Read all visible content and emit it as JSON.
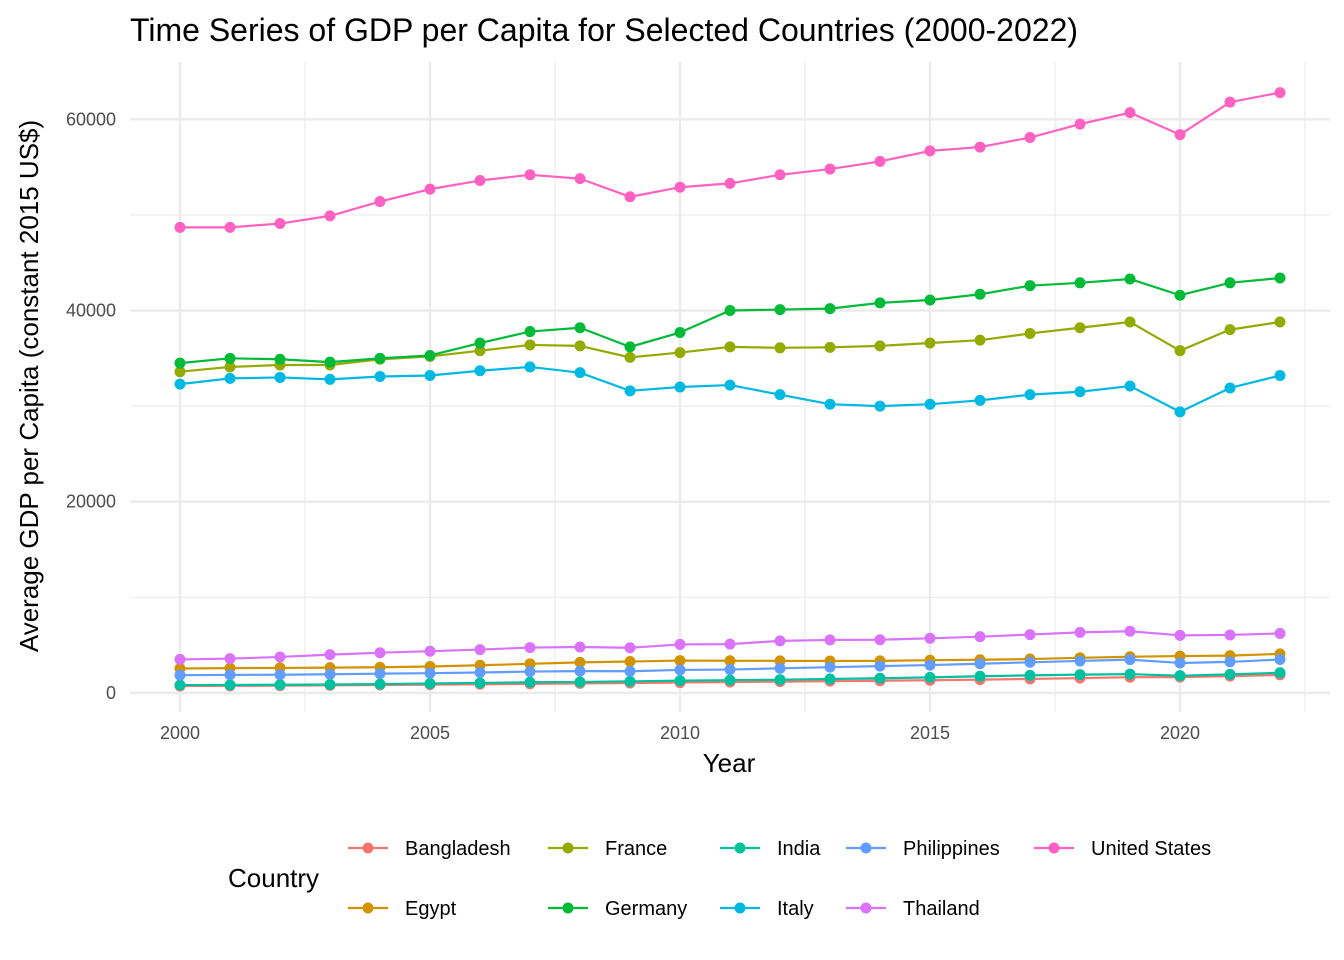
{
  "chart_data": {
    "type": "line",
    "title": "Time Series of GDP per Capita for Selected Countries (2000-2022)",
    "xlabel": "Year",
    "ylabel": "Average GDP per Capita (constant 2015 US$)",
    "xlim": [
      1999,
      2023
    ],
    "ylim": [
      -2000,
      66000
    ],
    "x_ticks": [
      2000,
      2005,
      2010,
      2015,
      2020
    ],
    "y_ticks": [
      0,
      20000,
      40000,
      60000
    ],
    "grid": true,
    "legend_title": "Country",
    "legend_position": "bottom",
    "x": [
      2000,
      2001,
      2002,
      2003,
      2004,
      2005,
      2006,
      2007,
      2008,
      2009,
      2010,
      2011,
      2012,
      2013,
      2014,
      2015,
      2016,
      2017,
      2018,
      2019,
      2020,
      2021,
      2022
    ],
    "series": [
      {
        "name": "Bangladesh",
        "color": "#F8766D",
        "values": [
          720,
          740,
          760,
          790,
          820,
          860,
          900,
          940,
          990,
          1030,
          1080,
          1130,
          1180,
          1230,
          1270,
          1320,
          1390,
          1460,
          1540,
          1640,
          1650,
          1750,
          1880
        ]
      },
      {
        "name": "Egypt",
        "color": "#D39200",
        "values": [
          2550,
          2590,
          2610,
          2640,
          2680,
          2760,
          2890,
          3040,
          3190,
          3280,
          3380,
          3360,
          3350,
          3340,
          3350,
          3420,
          3470,
          3540,
          3670,
          3780,
          3850,
          3900,
          4080
        ]
      },
      {
        "name": "France",
        "color": "#93AA00",
        "values": [
          33600,
          34100,
          34300,
          34300,
          34900,
          35200,
          35800,
          36400,
          36300,
          35100,
          35600,
          36200,
          36100,
          36150,
          36300,
          36600,
          36900,
          37600,
          38200,
          38800,
          35800,
          38000,
          38800
        ]
      },
      {
        "name": "Germany",
        "color": "#00BA38",
        "values": [
          34500,
          35000,
          34900,
          34600,
          35000,
          35300,
          36600,
          37800,
          38200,
          36200,
          37700,
          40000,
          40100,
          40200,
          40800,
          41100,
          41700,
          42600,
          42900,
          43300,
          41600,
          42900,
          43400
        ]
      },
      {
        "name": "India",
        "color": "#00C19F",
        "values": [
          820,
          830,
          850,
          880,
          920,
          980,
          1040,
          1110,
          1140,
          1200,
          1280,
          1330,
          1380,
          1450,
          1530,
          1620,
          1740,
          1830,
          1910,
          1960,
          1800,
          1940,
          2100
        ]
      },
      {
        "name": "Italy",
        "color": "#00B9E3",
        "values": [
          32300,
          32900,
          33000,
          32800,
          33100,
          33200,
          33700,
          34100,
          33500,
          31600,
          32000,
          32200,
          31200,
          30200,
          30000,
          30200,
          30600,
          31200,
          31500,
          32100,
          29400,
          31900,
          33200
        ]
      },
      {
        "name": "Philippines",
        "color": "#619CFF",
        "values": [
          1850,
          1880,
          1900,
          1950,
          2010,
          2060,
          2130,
          2230,
          2280,
          2260,
          2400,
          2440,
          2570,
          2690,
          2800,
          2910,
          3050,
          3200,
          3340,
          3480,
          3130,
          3240,
          3490
        ]
      },
      {
        "name": "Thailand",
        "color": "#DB72FB",
        "values": [
          3500,
          3580,
          3760,
          4000,
          4200,
          4360,
          4530,
          4740,
          4800,
          4720,
          5070,
          5100,
          5440,
          5540,
          5560,
          5710,
          5880,
          6100,
          6330,
          6450,
          6020,
          6060,
          6220
        ]
      },
      {
        "name": "United States",
        "color": "#FF61C3",
        "values": [
          48700,
          48700,
          49100,
          49900,
          51400,
          52700,
          53600,
          54200,
          53800,
          51900,
          52900,
          53300,
          54200,
          54800,
          55600,
          56700,
          57100,
          58100,
          59500,
          60700,
          58400,
          61800,
          62800
        ]
      }
    ]
  }
}
